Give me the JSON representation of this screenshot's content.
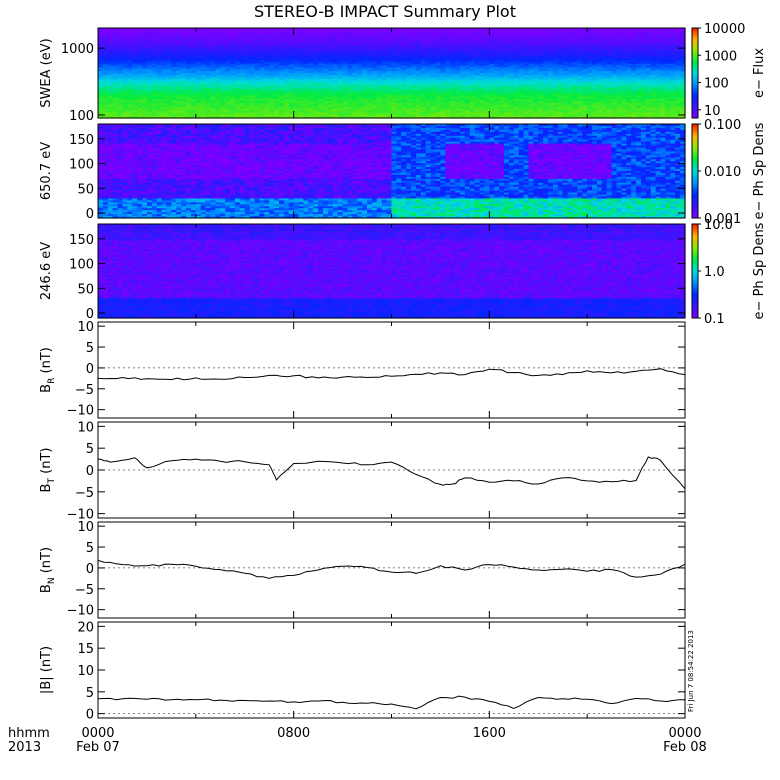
{
  "title": "STEREO-B IMPACT Summary Plot",
  "stamp": "Fri Jun  7 08:54:22 2013",
  "time_labels": {
    "row1": "hhmm",
    "row2": "2013",
    "ticks": [
      {
        "label": "0000",
        "sub": "Feb 07",
        "hour": 0
      },
      {
        "label": "0800",
        "sub": "",
        "hour": 8
      },
      {
        "label": "1600",
        "sub": "",
        "hour": 16
      },
      {
        "label": "0000",
        "sub": "Feb 08",
        "hour": 24
      }
    ]
  },
  "chart_data": [
    {
      "type": "heatmap",
      "ylabel": "SWEA (eV)",
      "yscale": "log",
      "ylim": [
        90,
        2000
      ],
      "yticks": [
        {
          "v": 100,
          "label": "100"
        },
        {
          "v": 1000,
          "label": "1000"
        }
      ],
      "colorbar": {
        "label": "e− Flux",
        "scale": "log",
        "range": [
          5,
          10000
        ],
        "ticks": [
          {
            "v": 10,
            "label": "10"
          },
          {
            "v": 100,
            "label": "100"
          },
          {
            "v": 1000,
            "label": "1000"
          },
          {
            "v": 10000,
            "label": "10000"
          }
        ]
      },
      "profile": [
        {
          "e": 100,
          "v": 1000
        },
        {
          "e": 200,
          "v": 600
        },
        {
          "e": 300,
          "v": 250
        },
        {
          "e": 400,
          "v": 100
        },
        {
          "e": 550,
          "v": 50
        },
        {
          "e": 800,
          "v": 20
        },
        {
          "e": 1200,
          "v": 9
        },
        {
          "e": 2000,
          "v": 5
        }
      ]
    },
    {
      "type": "heatmap",
      "ylabel": "650.7 eV",
      "yscale": "linear",
      "ylim": [
        -10,
        180
      ],
      "yticks": [
        {
          "v": 0,
          "label": "0"
        },
        {
          "v": 50,
          "label": "50"
        },
        {
          "v": 100,
          "label": "100"
        },
        {
          "v": 150,
          "label": "150"
        }
      ],
      "colorbar": {
        "label": "e− Ph Sp Dens",
        "scale": "log",
        "range": [
          0.001,
          0.1
        ],
        "ticks": [
          {
            "v": 0.001,
            "label": "0.001"
          },
          {
            "v": 0.01,
            "label": "0.010"
          },
          {
            "v": 0.1,
            "label": "0.100"
          }
        ]
      }
    },
    {
      "type": "heatmap",
      "ylabel": "246.6 eV",
      "yscale": "linear",
      "ylim": [
        -10,
        180
      ],
      "yticks": [
        {
          "v": 0,
          "label": "0"
        },
        {
          "v": 50,
          "label": "50"
        },
        {
          "v": 100,
          "label": "100"
        },
        {
          "v": 150,
          "label": "150"
        }
      ],
      "colorbar": {
        "label": "e− Ph Sp Dens",
        "scale": "log",
        "range": [
          0.1,
          10
        ],
        "ticks": [
          {
            "v": 0.1,
            "label": "0.1"
          },
          {
            "v": 1,
            "label": "1.0"
          },
          {
            "v": 10,
            "label": "10.0"
          }
        ]
      }
    },
    {
      "type": "line",
      "ylabel": "B",
      "ylabel_sub": "R",
      "ylabel_unit": " (nT)",
      "ylim": [
        -12,
        11
      ],
      "yticks": [
        {
          "v": -10,
          "label": "−10"
        },
        {
          "v": -5,
          "label": "−5"
        },
        {
          "v": 0,
          "label": "0"
        },
        {
          "v": 5,
          "label": "5"
        },
        {
          "v": 10,
          "label": "10"
        }
      ],
      "x": [
        0,
        1,
        2,
        3,
        4,
        5,
        6,
        7,
        8,
        9,
        10,
        11,
        12,
        13,
        14,
        15,
        16,
        17,
        18,
        19,
        20,
        21,
        22,
        23,
        24
      ],
      "y": [
        -2.5,
        -2.3,
        -2.6,
        -2.8,
        -2.4,
        -2.7,
        -2.3,
        -1.8,
        -1.9,
        -2.4,
        -2.2,
        -2.3,
        -2.0,
        -1.5,
        -1.2,
        -1.6,
        -0.3,
        -1.1,
        -1.8,
        -1.6,
        -0.7,
        -1.2,
        -0.8,
        -0.2,
        -1.6
      ]
    },
    {
      "type": "line",
      "ylabel": "B",
      "ylabel_sub": "T",
      "ylabel_unit": " (nT)",
      "ylim": [
        -11,
        11
      ],
      "yticks": [
        {
          "v": -10,
          "label": "−10"
        },
        {
          "v": -5,
          "label": "−5"
        },
        {
          "v": 0,
          "label": "0"
        },
        {
          "v": 5,
          "label": "5"
        },
        {
          "v": 10,
          "label": "10"
        }
      ],
      "x": [
        0,
        0.5,
        1.5,
        2,
        3,
        4,
        5,
        6,
        7,
        7.3,
        8,
        9,
        10,
        11,
        12,
        13,
        14,
        14.5,
        15,
        16,
        17,
        18,
        19,
        20,
        21,
        22,
        22.5,
        23,
        24
      ],
      "y": [
        2.5,
        1.8,
        2.8,
        0.5,
        2.1,
        2.5,
        2.0,
        1.9,
        1.2,
        -2.3,
        1.5,
        2.0,
        1.6,
        1.2,
        1.8,
        -1.0,
        -3.3,
        -3.2,
        -1.8,
        -2.8,
        -2.5,
        -3.2,
        -1.8,
        -2.5,
        -2.7,
        -2.4,
        3.0,
        2.2,
        -4.3
      ]
    },
    {
      "type": "line",
      "ylabel": "B",
      "ylabel_sub": "N",
      "ylabel_unit": " (nT)",
      "ylim": [
        -12,
        11
      ],
      "yticks": [
        {
          "v": -10,
          "label": "−10"
        },
        {
          "v": -5,
          "label": "−5"
        },
        {
          "v": 0,
          "label": "0"
        },
        {
          "v": 5,
          "label": "5"
        },
        {
          "v": 10,
          "label": "10"
        }
      ],
      "x": [
        0,
        1,
        2,
        3,
        4,
        5,
        6,
        7,
        8,
        9,
        10,
        11,
        12,
        13,
        14,
        15,
        16,
        17,
        18,
        19,
        20,
        21,
        22,
        23,
        24
      ],
      "y": [
        1.8,
        0.8,
        0.5,
        0.9,
        0.4,
        -0.4,
        -1.3,
        -2.5,
        -1.8,
        -0.5,
        0.4,
        0.1,
        -1.0,
        -1.3,
        0.5,
        -0.5,
        0.8,
        0.2,
        -0.5,
        -0.3,
        -0.8,
        -0.4,
        -2.2,
        -1.5,
        0.9
      ]
    },
    {
      "type": "line",
      "ylabel": "|B| (nT)",
      "ylim": [
        -1,
        21
      ],
      "yticks": [
        {
          "v": 0,
          "label": "0"
        },
        {
          "v": 5,
          "label": "5"
        },
        {
          "v": 10,
          "label": "10"
        },
        {
          "v": 15,
          "label": "15"
        },
        {
          "v": 20,
          "label": "20"
        }
      ],
      "x": [
        0,
        1,
        2,
        3,
        4,
        5,
        6,
        7,
        8,
        9,
        10,
        11,
        12,
        13,
        14,
        15,
        16,
        17,
        18,
        19,
        20,
        21,
        22,
        23,
        24
      ],
      "y": [
        3.4,
        3.4,
        3.3,
        3.2,
        3.2,
        3.1,
        3.0,
        2.9,
        2.7,
        2.9,
        2.6,
        2.4,
        2.2,
        1.1,
        3.7,
        3.8,
        2.8,
        1.2,
        3.7,
        3.4,
        3.3,
        2.3,
        3.5,
        2.9,
        3.2
      ]
    }
  ]
}
